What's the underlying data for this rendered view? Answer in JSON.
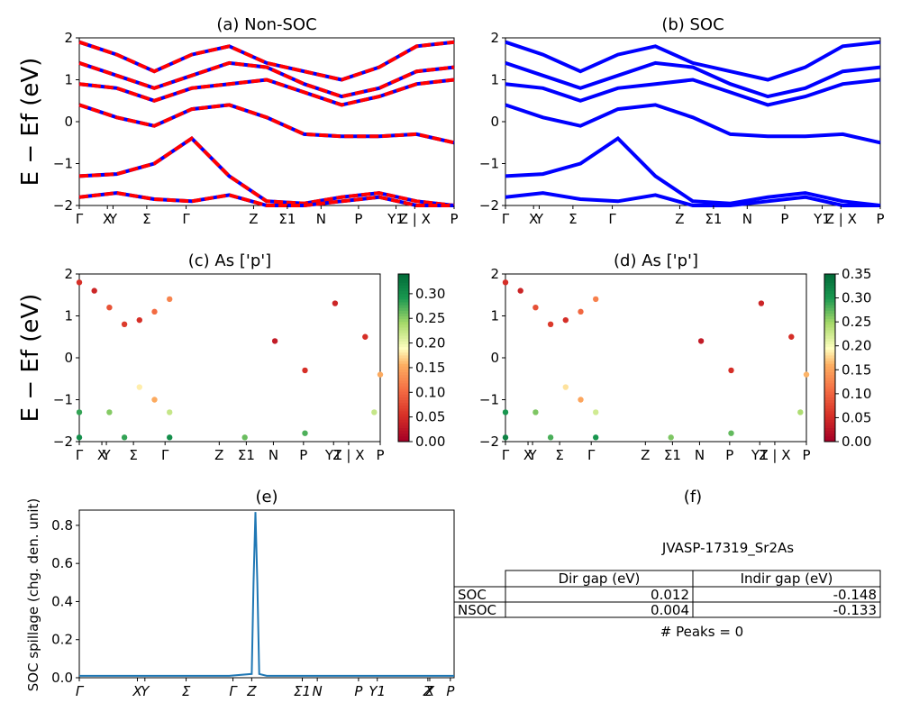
{
  "figure": {
    "ylabel_top": "E − Ef (eV)",
    "ylabel_mid": "E − Ef (eV)"
  },
  "kpath_labels": [
    "Γ",
    "X",
    "Y",
    "Σ",
    "Γ",
    "Z",
    "Σ1",
    "N",
    "P",
    "Y1",
    "Z | X",
    "P"
  ],
  "kpath_labels_e": [
    "Γ",
    "X",
    "Y",
    "Σ",
    "Γ",
    "Z",
    "Σ1",
    "N",
    "P",
    "Y1",
    "Z",
    "X",
    "P"
  ],
  "panels": {
    "a": {
      "title": "(a) Non-SOC"
    },
    "b": {
      "title": "(b) SOC"
    },
    "c": {
      "title": "(c)  As ['p']",
      "colorbar_ticks": [
        "0.00",
        "0.05",
        "0.10",
        "0.15",
        "0.20",
        "0.25",
        "0.30"
      ]
    },
    "d": {
      "title": "(d) As ['p']",
      "colorbar_ticks": [
        "0.00",
        "0.05",
        "0.10",
        "0.15",
        "0.20",
        "0.25",
        "0.30",
        "0.35"
      ]
    },
    "e": {
      "title": "(e)",
      "ylabel": "SOC spillage (chg. den. unit)"
    },
    "f": {
      "title": "(f)",
      "material": "JVASP-17319_Sr2As",
      "peaks": "# Peaks = 0",
      "table": {
        "headers": [
          "",
          "Dir gap (eV)",
          "Indir gap (eV)"
        ],
        "rows": [
          [
            "SOC",
            "0.012",
            "-0.148"
          ],
          [
            "NSOC",
            "0.004",
            "-0.133"
          ]
        ]
      }
    }
  },
  "colors": {
    "nonsoc": "#ff0000",
    "soc": "#0000ff",
    "spillage": "#1f77b4"
  },
  "chart_data": [
    {
      "type": "line",
      "panel": "a",
      "title": "(a) Non-SOC",
      "ylabel": "E − Ef (eV)",
      "ylim": [
        -2,
        2
      ],
      "yticks": [
        -2,
        -1,
        0,
        1,
        2
      ],
      "x": [
        0,
        1,
        2,
        3,
        4,
        5,
        6,
        7,
        8,
        9,
        10
      ],
      "series": [
        {
          "values": [
            1.9,
            1.6,
            1.2,
            1.6,
            1.8,
            1.4,
            1.2,
            1.0,
            1.3,
            1.8,
            1.9
          ]
        },
        {
          "values": [
            1.4,
            1.1,
            0.8,
            1.1,
            1.4,
            1.3,
            0.9,
            0.6,
            0.8,
            1.2,
            1.3
          ]
        },
        {
          "values": [
            0.9,
            0.8,
            0.5,
            0.8,
            0.9,
            1.0,
            0.7,
            0.4,
            0.6,
            0.9,
            1.0
          ]
        },
        {
          "values": [
            0.4,
            0.1,
            -0.1,
            0.3,
            0.4,
            0.1,
            -0.3,
            -0.35,
            -0.35,
            -0.3,
            -0.5
          ]
        },
        {
          "values": [
            -1.3,
            -1.25,
            -1.0,
            -0.4,
            -1.3,
            -1.9,
            -1.95,
            -1.8,
            -1.7,
            -1.9,
            -2.0
          ]
        },
        {
          "values": [
            -1.8,
            -1.7,
            -1.85,
            -1.9,
            -1.75,
            -2.0,
            -2.0,
            -1.9,
            -1.8,
            -2.0,
            -2.0
          ]
        }
      ]
    },
    {
      "type": "line",
      "panel": "b",
      "title": "(b) SOC",
      "ylim": [
        -2,
        2
      ],
      "yticks": [
        -2,
        -1,
        0,
        1,
        2
      ],
      "x": [
        0,
        1,
        2,
        3,
        4,
        5,
        6,
        7,
        8,
        9,
        10
      ],
      "series": [
        {
          "values": [
            1.9,
            1.6,
            1.2,
            1.6,
            1.8,
            1.4,
            1.2,
            1.0,
            1.3,
            1.8,
            1.9
          ]
        },
        {
          "values": [
            1.4,
            1.1,
            0.8,
            1.1,
            1.4,
            1.3,
            0.9,
            0.6,
            0.8,
            1.2,
            1.3
          ]
        },
        {
          "values": [
            0.9,
            0.8,
            0.5,
            0.8,
            0.9,
            1.0,
            0.7,
            0.4,
            0.6,
            0.9,
            1.0
          ]
        },
        {
          "values": [
            0.4,
            0.1,
            -0.1,
            0.3,
            0.4,
            0.1,
            -0.3,
            -0.35,
            -0.35,
            -0.3,
            -0.5
          ]
        },
        {
          "values": [
            -1.3,
            -1.25,
            -1.0,
            -0.4,
            -1.3,
            -1.9,
            -1.95,
            -1.8,
            -1.7,
            -1.9,
            -2.0
          ]
        },
        {
          "values": [
            -1.8,
            -1.7,
            -1.85,
            -1.9,
            -1.75,
            -2.0,
            -2.0,
            -1.9,
            -1.8,
            -2.0,
            -2.0
          ]
        }
      ]
    },
    {
      "type": "scatter",
      "panel": "c",
      "title": "(c)  As ['p']",
      "ylim": [
        -2,
        2
      ],
      "colorbar_range": [
        0,
        0.34
      ],
      "points": [
        {
          "x": 0.0,
          "y": 1.8,
          "c": 0.05
        },
        {
          "x": 0.5,
          "y": 1.6,
          "c": 0.04
        },
        {
          "x": 1.0,
          "y": 1.2,
          "c": 0.08
        },
        {
          "x": 1.5,
          "y": 0.8,
          "c": 0.06
        },
        {
          "x": 2.0,
          "y": 0.9,
          "c": 0.05
        },
        {
          "x": 2.5,
          "y": 1.1,
          "c": 0.1
        },
        {
          "x": 3.0,
          "y": 1.4,
          "c": 0.12
        },
        {
          "x": 0.0,
          "y": -1.3,
          "c": 0.28
        },
        {
          "x": 1.0,
          "y": -1.3,
          "c": 0.25
        },
        {
          "x": 2.0,
          "y": -0.7,
          "c": 0.18
        },
        {
          "x": 2.5,
          "y": -1.0,
          "c": 0.15
        },
        {
          "x": 3.0,
          "y": -1.3,
          "c": 0.22
        },
        {
          "x": 0.0,
          "y": -1.9,
          "c": 0.3
        },
        {
          "x": 1.5,
          "y": -1.9,
          "c": 0.28
        },
        {
          "x": 3.0,
          "y": -1.9,
          "c": 0.3
        },
        {
          "x": 5.5,
          "y": -1.9,
          "c": 0.26
        },
        {
          "x": 7.5,
          "y": -1.8,
          "c": 0.27
        },
        {
          "x": 6.5,
          "y": 0.4,
          "c": 0.03
        },
        {
          "x": 7.5,
          "y": -0.3,
          "c": 0.05
        },
        {
          "x": 8.5,
          "y": 1.3,
          "c": 0.04
        },
        {
          "x": 9.5,
          "y": 0.5,
          "c": 0.05
        },
        {
          "x": 9.8,
          "y": -1.3,
          "c": 0.22
        },
        {
          "x": 10.0,
          "y": -0.4,
          "c": 0.15
        }
      ]
    },
    {
      "type": "scatter",
      "panel": "d",
      "title": "(d) As ['p']",
      "ylim": [
        -2,
        2
      ],
      "colorbar_range": [
        0,
        0.35
      ],
      "points": [
        {
          "x": 0.0,
          "y": 1.8,
          "c": 0.05
        },
        {
          "x": 0.5,
          "y": 1.6,
          "c": 0.04
        },
        {
          "x": 1.0,
          "y": 1.2,
          "c": 0.08
        },
        {
          "x": 1.5,
          "y": 0.8,
          "c": 0.06
        },
        {
          "x": 2.0,
          "y": 0.9,
          "c": 0.05
        },
        {
          "x": 2.5,
          "y": 1.1,
          "c": 0.1
        },
        {
          "x": 3.0,
          "y": 1.4,
          "c": 0.12
        },
        {
          "x": 0.0,
          "y": -1.3,
          "c": 0.3
        },
        {
          "x": 1.0,
          "y": -1.3,
          "c": 0.26
        },
        {
          "x": 2.0,
          "y": -0.7,
          "c": 0.18
        },
        {
          "x": 2.5,
          "y": -1.0,
          "c": 0.15
        },
        {
          "x": 3.0,
          "y": -1.3,
          "c": 0.22
        },
        {
          "x": 0.0,
          "y": -1.9,
          "c": 0.32
        },
        {
          "x": 1.5,
          "y": -1.9,
          "c": 0.28
        },
        {
          "x": 3.0,
          "y": -1.9,
          "c": 0.3
        },
        {
          "x": 5.5,
          "y": -1.9,
          "c": 0.26
        },
        {
          "x": 7.5,
          "y": -1.8,
          "c": 0.27
        },
        {
          "x": 6.5,
          "y": 0.4,
          "c": 0.03
        },
        {
          "x": 7.5,
          "y": -0.3,
          "c": 0.05
        },
        {
          "x": 8.5,
          "y": 1.3,
          "c": 0.04
        },
        {
          "x": 9.5,
          "y": 0.5,
          "c": 0.05
        },
        {
          "x": 9.8,
          "y": -1.3,
          "c": 0.24
        },
        {
          "x": 10.0,
          "y": -0.4,
          "c": 0.16
        }
      ]
    },
    {
      "type": "line",
      "panel": "e",
      "title": "(e)",
      "ylabel": "SOC spillage (chg. den. unit)",
      "ylim": [
        0,
        0.88
      ],
      "yticks": [
        0.0,
        0.2,
        0.4,
        0.6,
        0.8
      ],
      "x": [
        0.0,
        0.1,
        0.2,
        0.3,
        0.4,
        0.46,
        0.465,
        0.47,
        0.475,
        0.48,
        0.5,
        0.6,
        0.7,
        0.8,
        0.9,
        1.0
      ],
      "series": [
        {
          "name": "",
          "values": [
            0.01,
            0.01,
            0.01,
            0.01,
            0.01,
            0.02,
            0.5,
            0.87,
            0.5,
            0.02,
            0.01,
            0.01,
            0.01,
            0.01,
            0.01,
            0.01
          ]
        }
      ]
    }
  ]
}
